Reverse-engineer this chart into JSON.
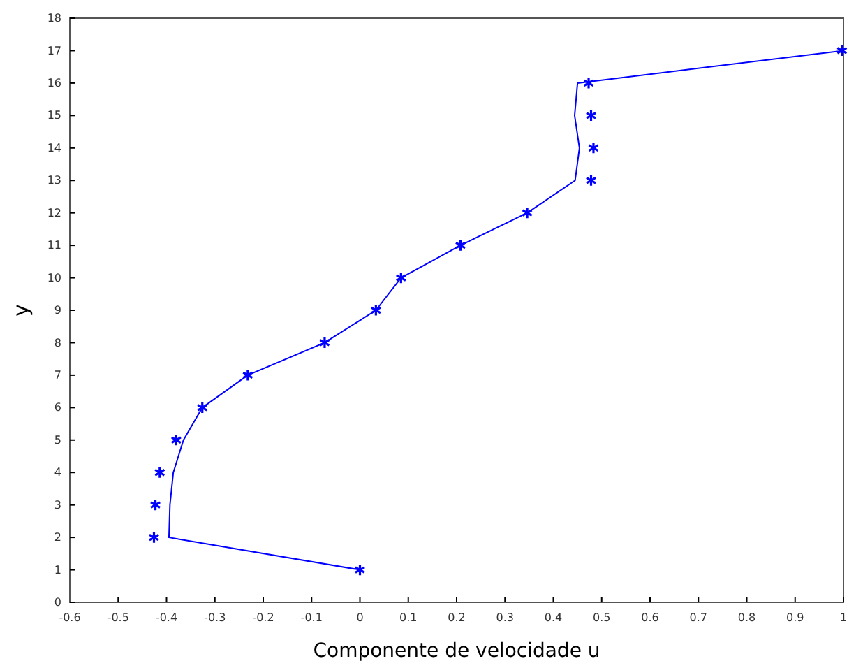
{
  "chart_data": {
    "type": "line",
    "xlabel": "Componente de velocidade u",
    "ylabel": "y",
    "xlim": [
      -0.6,
      1.0
    ],
    "xticks": [
      -0.6,
      -0.5,
      -0.4,
      -0.3,
      -0.2,
      -0.1,
      0,
      0.1,
      0.2,
      0.3,
      0.4,
      0.5,
      0.6,
      0.7,
      0.8,
      0.9,
      1
    ],
    "ylim": [
      0,
      18
    ],
    "yticks": [
      0,
      1,
      2,
      3,
      4,
      5,
      6,
      7,
      8,
      9,
      10,
      11,
      12,
      13,
      14,
      15,
      16,
      17,
      18
    ],
    "grid": false,
    "series": [
      {
        "color": "#0000ff",
        "marker": "none",
        "line_style": "solid",
        "x": [
          0,
          -0.395,
          -0.393,
          -0.386,
          -0.365,
          -0.326,
          -0.232,
          -0.073,
          0.033,
          0.085,
          0.208,
          0.346,
          0.445,
          0.454,
          0.444,
          0.45,
          1.0
        ],
        "values": [
          1,
          2,
          3,
          4,
          5,
          6,
          7,
          8,
          9,
          10,
          11,
          12,
          13,
          14,
          15,
          16,
          17
        ]
      },
      {
        "type": "scatter",
        "color": "#0000ff",
        "marker": "cross",
        "x": [
          0,
          -0.426,
          -0.423,
          -0.414,
          -0.38,
          -0.326,
          -0.232,
          -0.073,
          0.033,
          0.085,
          0.208,
          0.346,
          0.478,
          0.483,
          0.478,
          0.473,
          0.997
        ],
        "values": [
          1,
          2,
          3,
          4,
          5,
          6,
          7,
          8,
          9,
          10,
          11,
          12,
          13,
          14,
          15,
          16,
          17
        ]
      }
    ]
  }
}
